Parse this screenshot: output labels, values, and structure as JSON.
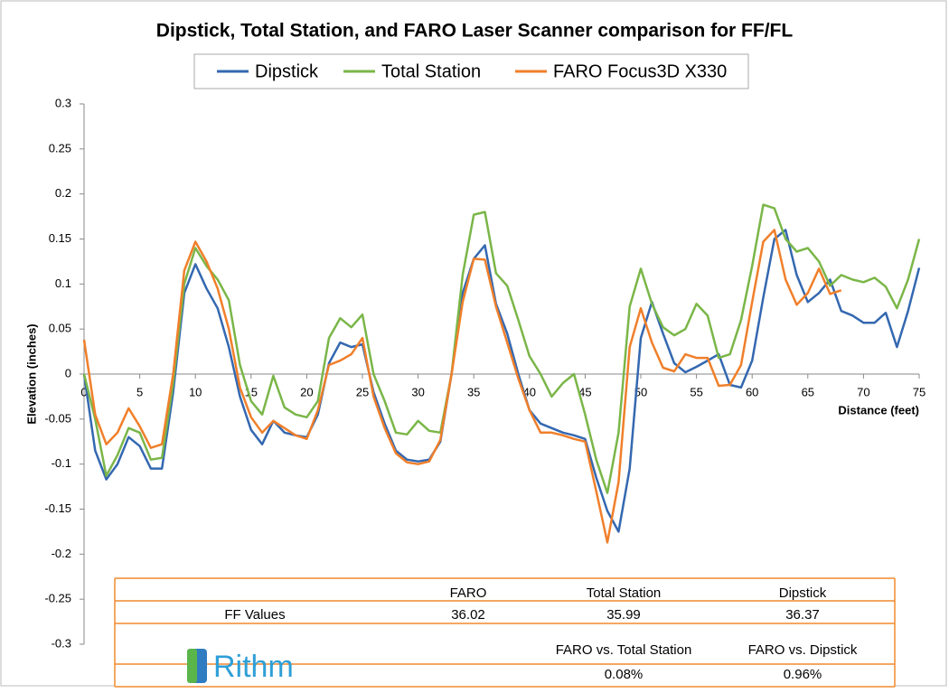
{
  "chart_data": {
    "type": "line",
    "title": "Dipstick, Total Station, and FARO Laser Scanner comparison for FF/FL",
    "x_label": "Distance (feet)",
    "y_label": "Elevation (inches)",
    "x": [
      0,
      1,
      2,
      3,
      4,
      5,
      6,
      7,
      8,
      9,
      10,
      11,
      12,
      13,
      14,
      15,
      16,
      17,
      18,
      19,
      20,
      21,
      22,
      23,
      24,
      25,
      26,
      27,
      28,
      29,
      30,
      31,
      32,
      33,
      34,
      35,
      36,
      37,
      38,
      39,
      40,
      41,
      42,
      43,
      44,
      45,
      46,
      47,
      48,
      49,
      50,
      51,
      52,
      53,
      54,
      55,
      56,
      57,
      58,
      59,
      60,
      61,
      62,
      63,
      64,
      65,
      66,
      67,
      68,
      69,
      70,
      71,
      72,
      73,
      74,
      75
    ],
    "series": [
      {
        "name": "Dipstick",
        "color": "#3468b0",
        "values": [
          0,
          -0.085,
          -0.117,
          -0.1,
          -0.07,
          -0.08,
          -0.105,
          -0.105,
          -0.02,
          0.09,
          0.122,
          0.095,
          0.073,
          0.03,
          -0.025,
          -0.062,
          -0.078,
          -0.052,
          -0.065,
          -0.068,
          -0.07,
          -0.045,
          0.012,
          0.035,
          0.03,
          0.033,
          -0.02,
          -0.055,
          -0.085,
          -0.095,
          -0.097,
          -0.095,
          -0.075,
          0,
          0.09,
          0.128,
          0.143,
          0.078,
          0.045,
          0,
          -0.04,
          -0.055,
          -0.06,
          -0.065,
          -0.068,
          -0.072,
          -0.115,
          -0.152,
          -0.175,
          -0.105,
          0.04,
          0.08,
          0.045,
          0.012,
          0.002,
          0.008,
          0.015,
          0.022,
          -0.012,
          -0.015,
          0.015,
          0.085,
          0.15,
          0.16,
          0.11,
          0.08,
          0.09,
          0.105,
          0.07,
          0.065,
          0.057,
          0.057,
          0.068,
          0.03,
          0.07,
          0.118
        ]
      },
      {
        "name": "Total Station",
        "color": "#7ab648",
        "values": [
          0,
          -0.05,
          -0.113,
          -0.09,
          -0.06,
          -0.065,
          -0.095,
          -0.093,
          -0.01,
          0.1,
          0.14,
          0.12,
          0.105,
          0.082,
          0.01,
          -0.03,
          -0.045,
          -0.002,
          -0.037,
          -0.045,
          -0.048,
          -0.03,
          0.04,
          0.062,
          0.052,
          0.066,
          0,
          -0.03,
          -0.065,
          -0.067,
          -0.052,
          -0.063,
          -0.065,
          0,
          0.11,
          0.177,
          0.18,
          0.112,
          0.098,
          0.06,
          0.02,
          0,
          -0.025,
          -0.01,
          0,
          -0.045,
          -0.095,
          -0.132,
          -0.065,
          0.075,
          0.117,
          0.078,
          0.052,
          0.043,
          0.05,
          0.078,
          0.065,
          0.018,
          0.022,
          0.06,
          0.12,
          0.188,
          0.184,
          0.15,
          0.136,
          0.14,
          0.125,
          0.098,
          0.11,
          0.105,
          0.102,
          0.107,
          0.097,
          0.073,
          0.105,
          0.15
        ]
      },
      {
        "name": "FARO Focus3D X330",
        "color": "#f07f2a",
        "values": [
          0.038,
          -0.045,
          -0.078,
          -0.065,
          -0.038,
          -0.058,
          -0.082,
          -0.078,
          0,
          0.115,
          0.147,
          0.125,
          0.095,
          0.05,
          -0.015,
          -0.048,
          -0.065,
          -0.052,
          -0.06,
          -0.068,
          -0.072,
          -0.04,
          0.01,
          0.015,
          0.022,
          0.04,
          -0.025,
          -0.06,
          -0.088,
          -0.098,
          -0.1,
          -0.097,
          -0.073,
          0,
          0.08,
          0.128,
          0.127,
          0.075,
          0.035,
          -0.005,
          -0.04,
          -0.065,
          -0.065,
          -0.068,
          -0.072,
          -0.075,
          -0.13,
          -0.187,
          -0.12,
          0.03,
          0.073,
          0.035,
          0.007,
          0.003,
          0.022,
          0.018,
          0.018,
          -0.013,
          -0.012,
          0.01,
          0.08,
          0.147,
          0.16,
          0.105,
          0.077,
          0.09,
          0.117,
          0.089,
          0.093,
          null,
          null,
          null,
          null,
          null,
          null,
          null
        ]
      }
    ],
    "xlim": [
      0,
      75
    ],
    "xticks": [
      0,
      5,
      10,
      15,
      20,
      25,
      30,
      35,
      40,
      45,
      50,
      55,
      60,
      65,
      70,
      75
    ],
    "ylim": [
      -0.3,
      0.3
    ],
    "yticks": [
      -0.3,
      -0.25,
      -0.2,
      -0.15,
      -0.1,
      -0.05,
      0,
      0.05,
      0.1,
      0.15,
      0.2,
      0.25,
      0.3
    ],
    "grid": false,
    "legend": "top"
  },
  "table": {
    "columns": [
      "FARO",
      "Total Station",
      "Dipstick"
    ],
    "row_label": "FF Values",
    "values": [
      "36.02",
      "35.99",
      "36.37"
    ],
    "comparison_columns": [
      "FARO vs. Total Station",
      "FARO vs. Dipstick"
    ],
    "comparison_values": [
      "0.08%",
      "0.96%"
    ]
  },
  "logo": "Rithm"
}
